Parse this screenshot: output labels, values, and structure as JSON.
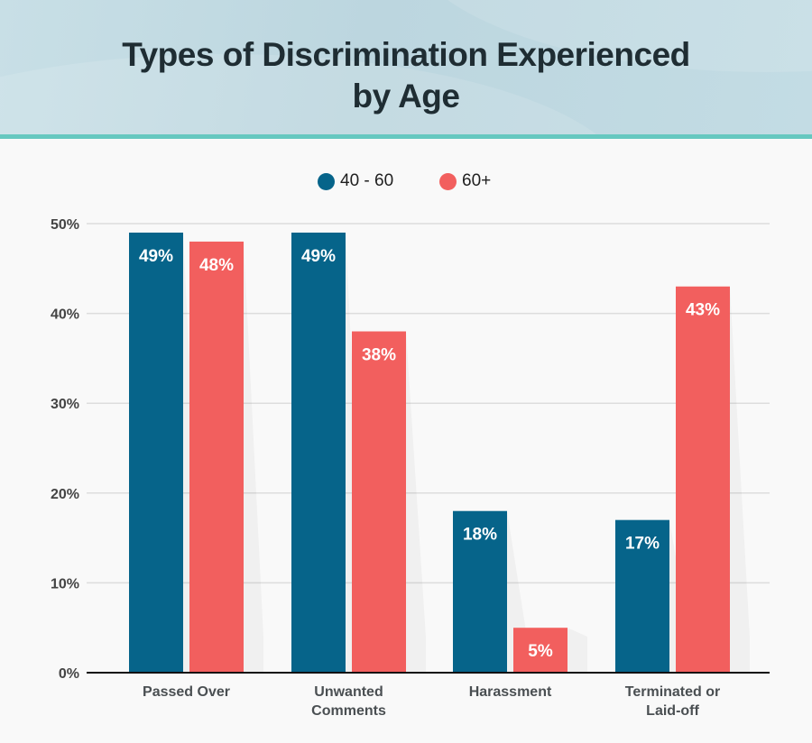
{
  "chart_data": {
    "type": "bar",
    "title": "Types of Discrimination Experienced by Age",
    "title_lines": [
      "Types of Discrimination Experienced",
      "by Age"
    ],
    "categories": [
      "Passed Over",
      "Unwanted Comments",
      "Harassment",
      "Terminated or Laid-off"
    ],
    "category_lines": [
      [
        "Passed Over"
      ],
      [
        "Unwanted",
        "Comments"
      ],
      [
        "Harassment"
      ],
      [
        "Terminated or",
        "Laid-off"
      ]
    ],
    "series": [
      {
        "name": "40 - 60",
        "color": "#06648a",
        "values": [
          49,
          49,
          18,
          17
        ]
      },
      {
        "name": "60+",
        "color": "#f25f5e",
        "values": [
          48,
          38,
          5,
          43
        ]
      }
    ],
    "data_label_suffix": "%",
    "xlabel": "",
    "ylabel": "",
    "ylim": [
      0,
      50
    ],
    "yticks": [
      0,
      10,
      20,
      30,
      40,
      50
    ],
    "ytick_labels": [
      "0%",
      "10%",
      "20%",
      "30%",
      "40%",
      "50%"
    ],
    "grid": true,
    "legend_position": "top-center"
  },
  "colors": {
    "header_accent": "#66c8c0",
    "title_text": "#1f2d33"
  }
}
